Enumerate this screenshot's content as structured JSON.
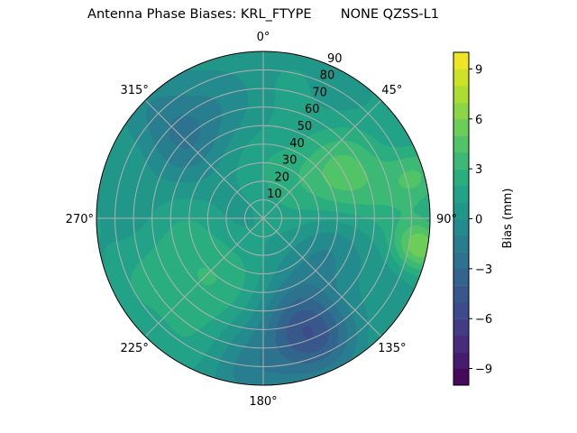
{
  "chart_data": {
    "type": "heatmap",
    "subtype": "polar filled contour",
    "title": "Antenna Phase Biases: KRL_FTYPE       NONE QZSS-L1",
    "theta_direction": "clockwise",
    "theta_zero": "north",
    "theta_ticks": [
      "0°",
      "45°",
      "90°",
      "135°",
      "180°",
      "225°",
      "270°",
      "315°"
    ],
    "radial_ticks": [
      "10",
      "20",
      "30",
      "40",
      "50",
      "60",
      "70",
      "80",
      "90"
    ],
    "radial_range": [
      0,
      90
    ],
    "grid": true,
    "colorbar": {
      "label": "Bias (mm)",
      "range": [
        -10,
        10
      ],
      "levels_step": 1,
      "ticks": [
        "−9",
        "−6",
        "−3",
        "0",
        "3",
        "6",
        "9"
      ],
      "tick_values": [
        -9,
        -6,
        -3,
        0,
        3,
        6,
        9
      ],
      "colormap": "viridis"
    },
    "field_base_mm": 0.8,
    "field_features": [
      {
        "azimuth_deg": 65,
        "zenith_deg": 50,
        "bias_mm": 3.5,
        "spread_deg": 18
      },
      {
        "azimuth_deg": 75,
        "zenith_deg": 85,
        "bias_mm": 3,
        "spread_deg": 12
      },
      {
        "azimuth_deg": 100,
        "zenith_deg": 86,
        "bias_mm": 5,
        "spread_deg": 10
      },
      {
        "azimuth_deg": 160,
        "zenith_deg": 66,
        "bias_mm": -6,
        "spread_deg": 17
      },
      {
        "azimuth_deg": 120,
        "zenith_deg": 40,
        "bias_mm": -2,
        "spread_deg": 15
      },
      {
        "azimuth_deg": 320,
        "zenith_deg": 66,
        "bias_mm": -3,
        "spread_deg": 20
      },
      {
        "azimuth_deg": 230,
        "zenith_deg": 50,
        "bias_mm": 2.5,
        "spread_deg": 22
      },
      {
        "azimuth_deg": 20,
        "zenith_deg": 30,
        "bias_mm": 1.5,
        "spread_deg": 15
      },
      {
        "azimuth_deg": 185,
        "zenith_deg": 88,
        "bias_mm": -2,
        "spread_deg": 14
      }
    ]
  }
}
